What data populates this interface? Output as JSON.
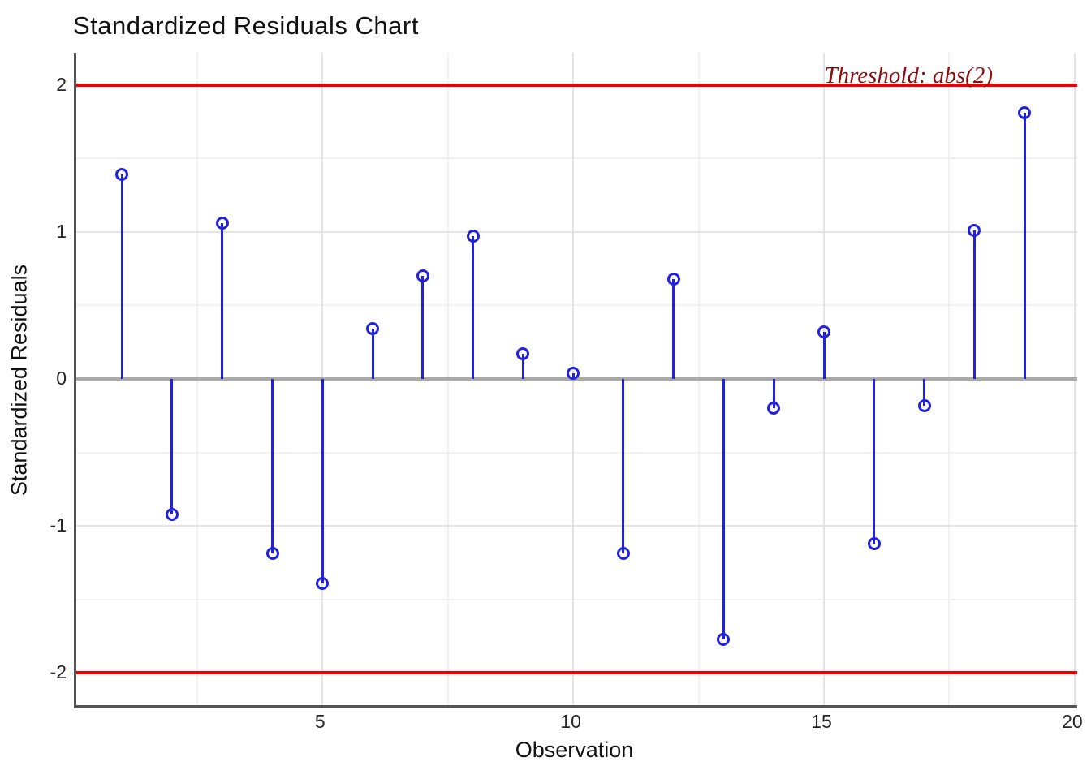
{
  "title": "Standardized Residuals Chart",
  "chart_data": {
    "type": "stem",
    "title": "Standardized Residuals Chart",
    "xlabel": "Observation",
    "ylabel": "Standardized Residuals",
    "x": [
      1,
      2,
      3,
      4,
      5,
      6,
      7,
      8,
      9,
      10,
      11,
      12,
      13,
      14,
      15,
      16,
      17,
      18,
      19
    ],
    "values": [
      1.39,
      -0.92,
      1.06,
      -1.19,
      -1.39,
      0.34,
      0.7,
      0.97,
      0.17,
      0.04,
      -1.19,
      0.68,
      -1.77,
      -0.2,
      0.32,
      -1.12,
      -0.18,
      1.01,
      1.81
    ],
    "x_ticks": [
      5,
      10,
      15,
      20
    ],
    "x_minor_gridlines": [
      2.5,
      7.5,
      12.5,
      17.5
    ],
    "y_ticks": [
      2,
      1,
      0,
      -1,
      -2
    ],
    "y_minor_gridlines": [
      1.5,
      0.5,
      -0.5,
      -1.5
    ],
    "xlim": [
      0.09,
      20.05
    ],
    "ylim": [
      -2.22,
      2.22
    ],
    "zero_line": 0,
    "threshold_lines": [
      2,
      -2
    ],
    "threshold_label": "Threshold: abs(2)",
    "grid": true,
    "legend": "none",
    "colors": {
      "stem": "#2222dd",
      "threshold": "#ee0000",
      "threshold_text": "#8b0e0e",
      "zero_line": "#a9a9a9",
      "axis": "#545454",
      "grid_major": "#e4e4e4",
      "grid_minor": "#f1f1f1"
    }
  }
}
